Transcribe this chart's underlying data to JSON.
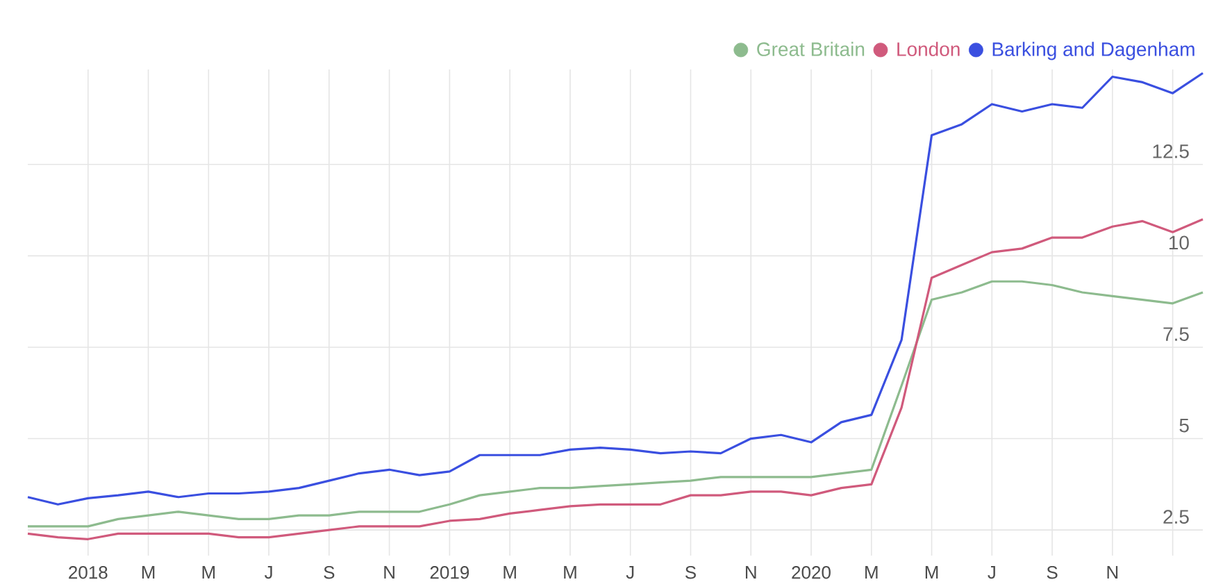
{
  "chart_data": {
    "type": "line",
    "x": [
      "2017-11",
      "2017-12",
      "2018-01",
      "2018-02",
      "2018-03",
      "2018-04",
      "2018-05",
      "2018-06",
      "2018-07",
      "2018-08",
      "2018-09",
      "2018-10",
      "2018-11",
      "2018-12",
      "2019-01",
      "2019-02",
      "2019-03",
      "2019-04",
      "2019-05",
      "2019-06",
      "2019-07",
      "2019-08",
      "2019-09",
      "2019-10",
      "2019-11",
      "2019-12",
      "2020-01",
      "2020-02",
      "2020-03",
      "2020-04",
      "2020-05",
      "2020-06",
      "2020-07",
      "2020-08",
      "2020-09",
      "2020-10",
      "2020-11",
      "2020-12",
      "2021-01",
      "2021-02"
    ],
    "series": [
      {
        "name": "Great Britain",
        "color": "#8dbb8e",
        "values": [
          2.6,
          2.6,
          2.6,
          2.8,
          2.9,
          3.0,
          2.9,
          2.8,
          2.8,
          2.9,
          2.9,
          3.0,
          3.0,
          3.0,
          3.2,
          3.45,
          3.55,
          3.65,
          3.65,
          3.7,
          3.75,
          3.8,
          3.85,
          3.95,
          3.95,
          3.95,
          3.95,
          4.05,
          4.15,
          6.45,
          8.8,
          9.0,
          9.3,
          9.3,
          9.2,
          9.0,
          8.9,
          8.8,
          8.7,
          9.0
        ]
      },
      {
        "name": "London",
        "color": "#d05a7c",
        "values": [
          2.4,
          2.3,
          2.25,
          2.4,
          2.4,
          2.4,
          2.4,
          2.3,
          2.3,
          2.4,
          2.5,
          2.6,
          2.6,
          2.6,
          2.75,
          2.8,
          2.95,
          3.05,
          3.15,
          3.2,
          3.2,
          3.2,
          3.45,
          3.45,
          3.55,
          3.55,
          3.45,
          3.65,
          3.75,
          5.85,
          9.4,
          9.75,
          10.1,
          10.2,
          10.5,
          10.5,
          10.8,
          10.95,
          10.65,
          11.0
        ]
      },
      {
        "name": "Barking and Dagenham",
        "color": "#3a4fe0",
        "values": [
          3.4,
          3.2,
          3.37,
          3.45,
          3.55,
          3.4,
          3.5,
          3.5,
          3.55,
          3.65,
          3.85,
          4.05,
          4.15,
          4.0,
          4.1,
          4.55,
          4.55,
          4.55,
          4.7,
          4.75,
          4.7,
          4.6,
          4.65,
          4.6,
          5.0,
          5.1,
          4.9,
          5.45,
          5.65,
          7.7,
          13.3,
          13.6,
          14.15,
          13.95,
          14.15,
          14.05,
          14.9,
          14.75,
          14.45,
          15.0
        ]
      }
    ],
    "xlim": [
      "2017-11",
      "2021-02"
    ],
    "xticks": [
      {
        "value": "2018-01",
        "label": "2018"
      },
      {
        "value": "2018-03",
        "label": "M"
      },
      {
        "value": "2018-05",
        "label": "M"
      },
      {
        "value": "2018-07",
        "label": "J"
      },
      {
        "value": "2018-09",
        "label": "S"
      },
      {
        "value": "2018-11",
        "label": "N"
      },
      {
        "value": "2019-01",
        "label": "2019"
      },
      {
        "value": "2019-03",
        "label": "M"
      },
      {
        "value": "2019-05",
        "label": "M"
      },
      {
        "value": "2019-07",
        "label": "J"
      },
      {
        "value": "2019-09",
        "label": "S"
      },
      {
        "value": "2019-11",
        "label": "N"
      },
      {
        "value": "2020-01",
        "label": "2020"
      },
      {
        "value": "2020-03",
        "label": "M"
      },
      {
        "value": "2020-05",
        "label": "M"
      },
      {
        "value": "2020-07",
        "label": "J"
      },
      {
        "value": "2020-09",
        "label": "S"
      },
      {
        "value": "2020-11",
        "label": "N"
      },
      {
        "value": "2021-01",
        "label": null
      }
    ],
    "ylim": [
      1.8,
      15.1
    ],
    "yticks": [
      2.5,
      5,
      7.5,
      10,
      12.5
    ],
    "grid": true,
    "legend": "top right",
    "marker": "none",
    "line_style": "solid"
  }
}
